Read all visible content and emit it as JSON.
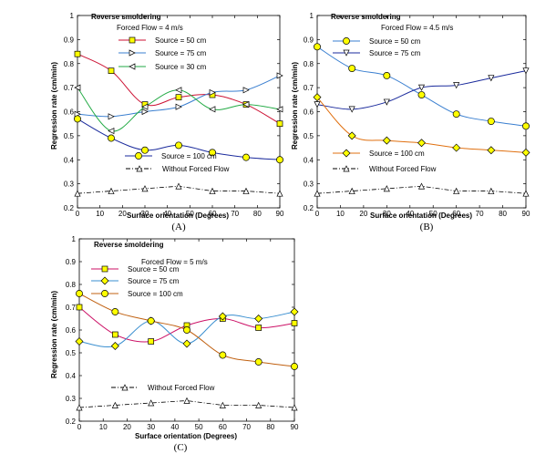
{
  "chart_data": [
    {
      "type": "line",
      "panel_label": "(A)",
      "heading": "Reverse smoldering",
      "subheading": "Forced Flow = 4 m/s",
      "xlabel": "Surface orientation (Degrees)",
      "ylabel": "Regression rate (cm/min)",
      "xlim": [
        0,
        90
      ],
      "ylim": [
        0.2,
        1.0
      ],
      "xticks": [
        "0",
        "10",
        "20",
        "30",
        "40",
        "50",
        "60",
        "70",
        "80",
        "90"
      ],
      "yticks": [
        "0.2",
        "0.3",
        "0.4",
        "0.5",
        "0.6",
        "0.7",
        "0.8",
        "0.9",
        "1"
      ],
      "x": [
        0,
        15,
        30,
        45,
        60,
        75,
        90
      ],
      "series": [
        {
          "name": "Source = 50 cm",
          "marker": "square",
          "color": "#cc1133",
          "values": [
            0.84,
            0.77,
            0.63,
            0.66,
            0.67,
            0.63,
            0.55
          ]
        },
        {
          "name": "Source = 75 cm",
          "marker": "triangle-right",
          "color": "#3a7fd0",
          "values": [
            0.59,
            0.58,
            0.6,
            0.62,
            0.68,
            0.69,
            0.75
          ]
        },
        {
          "name": "Source = 30 cm",
          "marker": "triangle-left",
          "color": "#22aa44",
          "values": [
            0.7,
            0.52,
            0.62,
            0.69,
            0.61,
            0.63,
            0.61
          ]
        },
        {
          "name": "Source = 100 cm",
          "marker": "circle",
          "color": "#1a2a9c",
          "values": [
            0.57,
            0.49,
            0.44,
            0.46,
            0.43,
            0.41,
            0.4
          ]
        },
        {
          "name": "Without Forced Flow",
          "marker": "triangle-up",
          "color": "#000000",
          "dash": true,
          "values": [
            0.26,
            0.27,
            0.28,
            0.29,
            0.27,
            0.27,
            0.26
          ]
        }
      ]
    },
    {
      "type": "line",
      "panel_label": "(B)",
      "heading": "Reverse smoldering",
      "subheading": "Forced Flow = 4.5 m/s",
      "xlabel": "Surface orientation (Degrees)",
      "ylabel": "Regression rate (cm/min)",
      "xlim": [
        0,
        90
      ],
      "ylim": [
        0.2,
        1.0
      ],
      "xticks": [
        "0",
        "10",
        "20",
        "30",
        "40",
        "50",
        "60",
        "70",
        "80",
        "90"
      ],
      "yticks": [
        "0.2",
        "0.3",
        "0.4",
        "0.5",
        "0.6",
        "0.7",
        "0.8",
        "0.9",
        "1"
      ],
      "x": [
        0,
        15,
        30,
        45,
        60,
        75,
        90
      ],
      "series": [
        {
          "name": "Source = 50 cm",
          "marker": "circle",
          "color": "#3a7fd0",
          "values": [
            0.87,
            0.78,
            0.75,
            0.67,
            0.59,
            0.56,
            0.54
          ]
        },
        {
          "name": "Source = 75 cm",
          "marker": "triangle-down",
          "color": "#1a2a9c",
          "values": [
            0.63,
            0.61,
            0.64,
            0.7,
            0.71,
            0.74,
            0.77
          ]
        },
        {
          "name": "Source = 100 cm",
          "marker": "diamond",
          "color": "#e07010",
          "values": [
            0.66,
            0.5,
            0.48,
            0.47,
            0.45,
            0.44,
            0.43
          ]
        },
        {
          "name": "Without Forced Flow",
          "marker": "triangle-up",
          "color": "#000000",
          "dash": true,
          "values": [
            0.26,
            0.27,
            0.28,
            0.29,
            0.27,
            0.27,
            0.26
          ]
        }
      ]
    },
    {
      "type": "line",
      "panel_label": "(C)",
      "heading": "Reverse smoldering",
      "subheading": "Forced Flow = 5 m/s",
      "xlabel": "Surface orientation (Degrees)",
      "ylabel": "Regression rate (cm/min)",
      "xlim": [
        0,
        90
      ],
      "ylim": [
        0.2,
        1.0
      ],
      "xticks": [
        "0",
        "10",
        "20",
        "30",
        "40",
        "50",
        "60",
        "70",
        "80",
        "90"
      ],
      "yticks": [
        "0.2",
        "0.3",
        "0.4",
        "0.5",
        "0.6",
        "0.7",
        "0.8",
        "0.9",
        "1"
      ],
      "x": [
        0,
        15,
        30,
        45,
        60,
        75,
        90
      ],
      "series": [
        {
          "name": "Source = 50 cm",
          "marker": "square",
          "color": "#cc1166",
          "values": [
            0.7,
            0.58,
            0.55,
            0.62,
            0.65,
            0.61,
            0.63
          ]
        },
        {
          "name": "Source = 75 cm",
          "marker": "diamond",
          "color": "#3a8fd0",
          "values": [
            0.55,
            0.53,
            0.64,
            0.54,
            0.66,
            0.65,
            0.68
          ]
        },
        {
          "name": "Source = 100 cm",
          "marker": "circle",
          "color": "#c06010",
          "values": [
            0.76,
            0.68,
            0.64,
            0.6,
            0.49,
            0.46,
            0.44
          ]
        },
        {
          "name": "Without Forced Flow",
          "marker": "triangle-up",
          "color": "#000000",
          "dash": true,
          "values": [
            0.26,
            0.27,
            0.28,
            0.29,
            0.27,
            0.27,
            0.26
          ]
        }
      ]
    }
  ]
}
